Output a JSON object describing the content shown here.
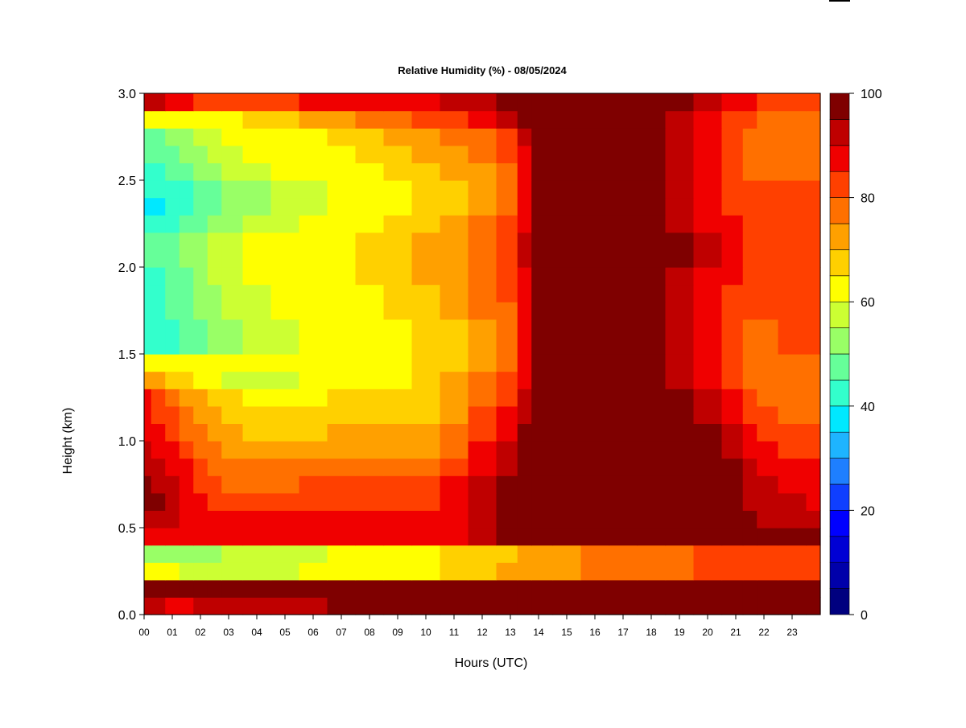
{
  "chart_data": {
    "type": "heatmap",
    "title": "Relative Humidity (%) - 08/05/2024",
    "xlabel": "Hours (UTC)",
    "ylabel": "Height (km)",
    "xlim": [
      0,
      24
    ],
    "ylim": [
      0.0,
      3.0
    ],
    "x_tick_labels": [
      "00",
      "01",
      "02",
      "03",
      "04",
      "05",
      "06",
      "07",
      "08",
      "09",
      "10",
      "11",
      "12",
      "13",
      "14",
      "15",
      "16",
      "17",
      "18",
      "19",
      "20",
      "21",
      "22",
      "23"
    ],
    "y_tick_labels": [
      "0.0",
      "0.5",
      "1.0",
      "1.5",
      "2.0",
      "2.5",
      "3.0"
    ],
    "y_ticks": [
      0.0,
      0.5,
      1.0,
      1.5,
      2.0,
      2.5,
      3.0
    ],
    "grid": false,
    "colorbar": {
      "label_values": [
        0,
        20,
        40,
        60,
        80,
        100
      ],
      "label_text": [
        "0",
        "20",
        "40",
        "60",
        "80",
        "100"
      ],
      "levels": [
        0,
        5,
        10,
        15,
        20,
        25,
        30,
        35,
        40,
        45,
        50,
        55,
        60,
        65,
        70,
        75,
        80,
        85,
        90,
        95,
        100
      ],
      "colors": [
        "#00007F",
        "#0000AA",
        "#0000D4",
        "#0000FF",
        "#0F3FFF",
        "#1E7FFF",
        "#1EB4FF",
        "#00E8FF",
        "#33FFCC",
        "#66FF99",
        "#99FF66",
        "#CCFF33",
        "#FFFF00",
        "#FFD000",
        "#FFA000",
        "#FF7000",
        "#FF4000",
        "#F00000",
        "#BF0000",
        "#7F0000"
      ]
    },
    "height_km": [
      0.05,
      0.15,
      0.25,
      0.35,
      0.45,
      0.55,
      0.65,
      0.75,
      0.85,
      0.95,
      1.05,
      1.15,
      1.25,
      1.35,
      1.45,
      1.55,
      1.65,
      1.75,
      1.85,
      1.95,
      2.05,
      2.15,
      2.25,
      2.35,
      2.45,
      2.55,
      2.65,
      2.75,
      2.85,
      2.95
    ],
    "time_h": [
      0.0,
      0.5,
      1.0,
      1.5,
      2.0,
      2.5,
      3.0,
      4.0,
      5.0,
      6.0,
      7.0,
      8.0,
      9.0,
      10.0,
      11.0,
      12.0,
      13.0,
      13.5,
      14.0,
      15.0,
      16.0,
      17.0,
      18.0,
      19.0,
      20.0,
      21.0,
      21.5,
      22.0,
      23.0,
      24.0
    ],
    "rh_profiles": [
      [
        90,
        90,
        88,
        88,
        90,
        90,
        92,
        92,
        92,
        92,
        95,
        95,
        95,
        95,
        95,
        95,
        98,
        98,
        98,
        98,
        98,
        98,
        98,
        98,
        98,
        98,
        98,
        98,
        98,
        98
      ],
      [
        100,
        100,
        100,
        100,
        100,
        100,
        100,
        100,
        100,
        100,
        100,
        100,
        100,
        100,
        100,
        100,
        100,
        100,
        100,
        100,
        100,
        100,
        100,
        100,
        100,
        100,
        100,
        100,
        100,
        100
      ],
      [
        60,
        60,
        60,
        55,
        55,
        55,
        55,
        55,
        55,
        60,
        60,
        60,
        60,
        60,
        65,
        65,
        70,
        70,
        70,
        70,
        75,
        75,
        75,
        75,
        80,
        80,
        80,
        80,
        80,
        80
      ],
      [
        50,
        50,
        50,
        50,
        50,
        50,
        55,
        55,
        55,
        55,
        60,
        60,
        60,
        60,
        65,
        65,
        65,
        70,
        70,
        70,
        75,
        75,
        75,
        75,
        80,
        80,
        80,
        80,
        80,
        80
      ],
      [
        88,
        88,
        88,
        85,
        85,
        85,
        85,
        85,
        85,
        85,
        85,
        85,
        85,
        85,
        88,
        90,
        95,
        98,
        98,
        98,
        98,
        98,
        98,
        98,
        98,
        98,
        95,
        95,
        95,
        95
      ],
      [
        92,
        92,
        90,
        88,
        85,
        85,
        85,
        85,
        85,
        85,
        85,
        85,
        85,
        85,
        88,
        92,
        95,
        98,
        98,
        98,
        98,
        98,
        98,
        98,
        98,
        98,
        95,
        92,
        90,
        90
      ],
      [
        95,
        95,
        92,
        88,
        85,
        82,
        80,
        80,
        80,
        82,
        82,
        82,
        82,
        82,
        85,
        90,
        95,
        98,
        98,
        98,
        98,
        98,
        98,
        98,
        98,
        95,
        92,
        90,
        90,
        88
      ],
      [
        95,
        92,
        90,
        85,
        82,
        80,
        78,
        78,
        78,
        80,
        80,
        80,
        80,
        80,
        85,
        90,
        95,
        98,
        98,
        98,
        98,
        98,
        98,
        98,
        98,
        95,
        92,
        90,
        88,
        85
      ],
      [
        92,
        90,
        88,
        85,
        80,
        78,
        75,
        75,
        75,
        78,
        78,
        78,
        78,
        78,
        82,
        88,
        92,
        98,
        98,
        98,
        98,
        98,
        98,
        98,
        98,
        95,
        90,
        88,
        85,
        85
      ],
      [
        90,
        88,
        85,
        80,
        78,
        75,
        72,
        70,
        70,
        70,
        72,
        72,
        72,
        72,
        78,
        85,
        90,
        95,
        98,
        98,
        98,
        98,
        98,
        98,
        95,
        92,
        88,
        85,
        82,
        82
      ],
      [
        88,
        85,
        82,
        78,
        75,
        72,
        70,
        68,
        68,
        68,
        70,
        70,
        70,
        70,
        75,
        82,
        88,
        95,
        98,
        98,
        98,
        98,
        98,
        98,
        95,
        90,
        85,
        82,
        80,
        80
      ],
      [
        85,
        82,
        80,
        75,
        72,
        70,
        68,
        65,
        65,
        65,
        68,
        68,
        68,
        68,
        72,
        80,
        85,
        92,
        98,
        98,
        98,
        98,
        98,
        95,
        92,
        88,
        82,
        80,
        78,
        78
      ],
      [
        85,
        82,
        78,
        72,
        70,
        68,
        65,
        62,
        62,
        62,
        65,
        65,
        65,
        65,
        70,
        78,
        82,
        90,
        98,
        98,
        98,
        98,
        98,
        95,
        90,
        85,
        80,
        78,
        78,
        78
      ],
      [
        70,
        70,
        68,
        65,
        62,
        60,
        58,
        58,
        58,
        60,
        62,
        62,
        62,
        65,
        70,
        75,
        80,
        88,
        98,
        98,
        98,
        98,
        95,
        90,
        85,
        80,
        78,
        78,
        78,
        78
      ],
      [
        60,
        60,
        60,
        60,
        60,
        60,
        60,
        60,
        60,
        60,
        62,
        62,
        62,
        65,
        68,
        72,
        78,
        85,
        98,
        98,
        98,
        98,
        95,
        90,
        85,
        80,
        78,
        78,
        78,
        78
      ],
      [
        40,
        40,
        42,
        45,
        48,
        50,
        52,
        55,
        58,
        60,
        62,
        62,
        62,
        65,
        68,
        72,
        78,
        85,
        98,
        98,
        98,
        98,
        95,
        90,
        85,
        80,
        78,
        78,
        80,
        80
      ],
      [
        40,
        40,
        42,
        45,
        48,
        50,
        52,
        55,
        58,
        60,
        62,
        62,
        62,
        65,
        68,
        72,
        78,
        85,
        98,
        98,
        98,
        98,
        95,
        90,
        85,
        80,
        78,
        78,
        80,
        80
      ],
      [
        42,
        42,
        45,
        48,
        50,
        52,
        55,
        58,
        60,
        62,
        62,
        62,
        65,
        68,
        70,
        75,
        78,
        85,
        98,
        98,
        98,
        98,
        95,
        90,
        85,
        82,
        80,
        80,
        80,
        80
      ],
      [
        42,
        42,
        45,
        48,
        50,
        52,
        55,
        58,
        60,
        62,
        62,
        62,
        65,
        68,
        70,
        75,
        80,
        88,
        98,
        98,
        98,
        98,
        95,
        92,
        88,
        82,
        80,
        80,
        80,
        80
      ],
      [
        42,
        42,
        45,
        48,
        52,
        55,
        58,
        60,
        62,
        62,
        62,
        65,
        68,
        70,
        72,
        75,
        80,
        88,
        98,
        98,
        98,
        98,
        98,
        92,
        88,
        85,
        82,
        82,
        82,
        82
      ],
      [
        45,
        45,
        48,
        50,
        52,
        55,
        58,
        60,
        62,
        62,
        62,
        65,
        68,
        70,
        72,
        78,
        82,
        90,
        98,
        98,
        98,
        98,
        98,
        95,
        90,
        85,
        82,
        82,
        82,
        82
      ],
      [
        45,
        45,
        48,
        50,
        52,
        55,
        58,
        60,
        62,
        62,
        62,
        65,
        68,
        70,
        72,
        78,
        82,
        90,
        98,
        98,
        98,
        98,
        98,
        95,
        90,
        85,
        82,
        82,
        82,
        82
      ],
      [
        40,
        40,
        42,
        45,
        48,
        50,
        52,
        55,
        58,
        60,
        62,
        62,
        65,
        68,
        70,
        75,
        80,
        88,
        95,
        98,
        98,
        98,
        98,
        92,
        88,
        85,
        82,
        82,
        80,
        80
      ],
      [
        38,
        38,
        40,
        42,
        45,
        48,
        50,
        52,
        55,
        58,
        60,
        62,
        62,
        65,
        68,
        72,
        78,
        85,
        95,
        98,
        98,
        98,
        98,
        92,
        88,
        82,
        80,
        80,
        80,
        80
      ],
      [
        40,
        40,
        40,
        42,
        45,
        48,
        50,
        52,
        55,
        58,
        60,
        62,
        62,
        65,
        68,
        72,
        78,
        85,
        95,
        98,
        98,
        98,
        95,
        90,
        85,
        82,
        80,
        80,
        80,
        80
      ],
      [
        42,
        42,
        45,
        48,
        50,
        52,
        55,
        58,
        60,
        62,
        62,
        62,
        65,
        68,
        70,
        72,
        78,
        85,
        95,
        98,
        98,
        98,
        95,
        90,
        85,
        80,
        78,
        78,
        78,
        78
      ],
      [
        45,
        45,
        48,
        50,
        52,
        55,
        58,
        60,
        62,
        62,
        62,
        65,
        68,
        70,
        72,
        75,
        80,
        88,
        98,
        98,
        98,
        98,
        95,
        90,
        85,
        80,
        78,
        78,
        78,
        78
      ],
      [
        48,
        48,
        50,
        52,
        55,
        58,
        60,
        62,
        62,
        62,
        65,
        68,
        70,
        72,
        75,
        78,
        82,
        90,
        98,
        98,
        98,
        98,
        95,
        90,
        85,
        80,
        78,
        78,
        78,
        78
      ],
      [
        62,
        62,
        62,
        62,
        62,
        62,
        62,
        65,
        68,
        70,
        72,
        75,
        78,
        80,
        82,
        85,
        90,
        95,
        98,
        98,
        98,
        98,
        95,
        90,
        85,
        82,
        80,
        78,
        78,
        78
      ],
      [
        92,
        90,
        88,
        85,
        82,
        80,
        80,
        80,
        82,
        85,
        85,
        85,
        88,
        88,
        90,
        92,
        95,
        98,
        98,
        98,
        98,
        98,
        98,
        95,
        92,
        88,
        85,
        82,
        82,
        82
      ]
    ]
  }
}
